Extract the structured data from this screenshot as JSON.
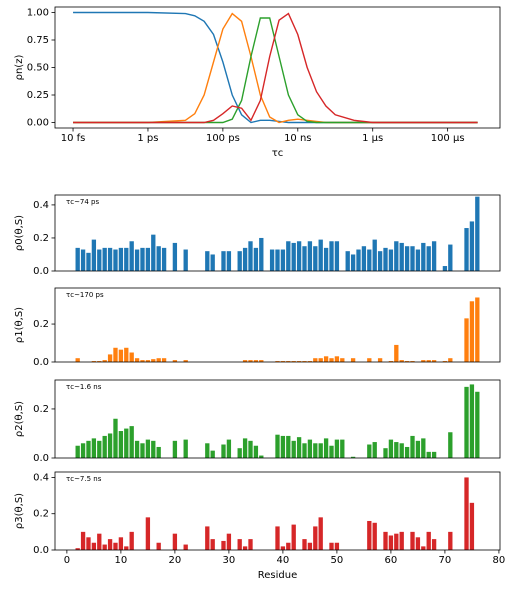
{
  "chart_data": [
    {
      "type": "line",
      "log_x": true,
      "xlabel": "τc",
      "ylabel": "ρn(z)",
      "x": [
        1e-14,
        1e-13,
        1e-12,
        1e-11,
        1.778e-11,
        3.162e-11,
        5.623e-11,
        1e-10,
        1.778e-10,
        3.162e-10,
        5.623e-10,
        1e-09,
        1.778e-09,
        3.162e-09,
        5.623e-09,
        1e-08,
        1.778e-08,
        3.162e-08,
        5.623e-08,
        1e-07,
        3.162e-07,
        1e-06,
        1e-05,
        0.0001,
        0.000631
      ],
      "series": [
        {
          "color": "#1f77b4",
          "values": [
            1,
            1,
            1,
            0.99,
            0.97,
            0.92,
            0.8,
            0.55,
            0.25,
            0.07,
            0,
            0.02,
            0.02,
            0.01,
            0,
            0,
            0,
            0,
            0,
            0,
            0,
            0,
            0,
            0,
            0
          ]
        },
        {
          "color": "#ff7f0e",
          "values": [
            0,
            0,
            0,
            0.02,
            0.08,
            0.25,
            0.55,
            0.85,
            0.99,
            0.92,
            0.6,
            0.25,
            0.05,
            0,
            0.02,
            0.03,
            0.02,
            0.01,
            0,
            0,
            0,
            0,
            0,
            0,
            0
          ]
        },
        {
          "color": "#2ca02c",
          "values": [
            0,
            0,
            0,
            0,
            0,
            0,
            0,
            0,
            0.03,
            0.2,
            0.6,
            0.95,
            0.95,
            0.6,
            0.25,
            0.07,
            0.01,
            0,
            0,
            0,
            0,
            0,
            0,
            0,
            0
          ]
        },
        {
          "color": "#d62728",
          "values": [
            0,
            0,
            0,
            0,
            0,
            0,
            0.02,
            0.08,
            0.15,
            0.13,
            0.02,
            0.2,
            0.6,
            0.93,
            0.99,
            0.8,
            0.5,
            0.28,
            0.15,
            0.07,
            0.02,
            0,
            0,
            0,
            0
          ]
        }
      ],
      "xlim": [
        3.3e-15,
        0.0025
      ],
      "xticks": [
        {
          "value": 1e-14,
          "label": "10 fs"
        },
        {
          "value": 1e-12,
          "label": "1 ps"
        },
        {
          "value": 1e-10,
          "label": "100 ps"
        },
        {
          "value": 1e-08,
          "label": "10 ns"
        },
        {
          "value": 1e-06,
          "label": "1 μs"
        },
        {
          "value": 0.0001,
          "label": "100 μs"
        }
      ],
      "ylim": [
        -0.05,
        1.05
      ],
      "yticks": [
        {
          "value": 0,
          "label": "0.00"
        },
        {
          "value": 0.25,
          "label": "0.25"
        },
        {
          "value": 0.5,
          "label": "0.50"
        },
        {
          "value": 0.75,
          "label": "0.75"
        },
        {
          "value": 1,
          "label": "1.00"
        }
      ]
    },
    {
      "type": "bar",
      "color": "#1f77b4",
      "ylabel": "ρ0(θ,S)",
      "annotation": "τc~74 ps",
      "x": [
        2,
        3,
        4,
        5,
        6,
        7,
        8,
        9,
        10,
        11,
        12,
        13,
        14,
        15,
        16,
        17,
        18,
        20,
        22,
        26,
        27,
        29,
        30,
        32,
        33,
        34,
        35,
        36,
        38,
        39,
        40,
        41,
        42,
        43,
        44,
        45,
        46,
        47,
        48,
        49,
        50,
        52,
        53,
        54,
        55,
        56,
        57,
        58,
        59,
        60,
        61,
        62,
        63,
        64,
        65,
        66,
        67,
        68,
        70,
        71,
        74,
        75,
        76
      ],
      "values": [
        0.14,
        0.13,
        0.11,
        0.19,
        0.13,
        0.14,
        0.14,
        0.13,
        0.14,
        0.14,
        0.18,
        0.13,
        0.14,
        0.14,
        0.22,
        0.15,
        0.14,
        0.17,
        0.13,
        0.12,
        0.1,
        0.12,
        0.12,
        0.12,
        0.14,
        0.18,
        0.14,
        0.2,
        0.13,
        0.13,
        0.13,
        0.18,
        0.17,
        0.18,
        0.15,
        0.18,
        0.15,
        0.19,
        0.14,
        0.18,
        0.18,
        0.12,
        0.1,
        0.13,
        0.15,
        0.13,
        0.19,
        0.12,
        0.14,
        0.13,
        0.18,
        0.17,
        0.15,
        0.15,
        0.13,
        0.17,
        0.15,
        0.18,
        0.03,
        0.16,
        0.26,
        0.3,
        0.45
      ],
      "xlim": [
        -2.2,
        80.2
      ],
      "ylim": [
        0,
        0.46
      ],
      "yticks": [
        {
          "value": 0,
          "label": "0.0"
        },
        {
          "value": 0.2,
          "label": "0.2"
        },
        {
          "value": 0.4,
          "label": "0.4"
        }
      ]
    },
    {
      "type": "bar",
      "color": "#ff7f0e",
      "ylabel": "ρ1(θ,S)",
      "annotation": "τc~170 ps",
      "x": [
        2,
        5,
        6,
        7,
        8,
        9,
        10,
        11,
        12,
        13,
        14,
        15,
        16,
        17,
        18,
        20,
        22,
        33,
        34,
        35,
        36,
        39,
        40,
        41,
        42,
        43,
        44,
        45,
        46,
        47,
        48,
        49,
        50,
        51,
        53,
        56,
        58,
        60,
        61,
        62,
        63,
        64,
        66,
        67,
        68,
        70,
        71,
        74,
        75,
        76
      ],
      "values": [
        0.02,
        0.005,
        0.005,
        0.01,
        0.04,
        0.075,
        0.065,
        0.075,
        0.05,
        0.02,
        0.01,
        0.01,
        0.015,
        0.02,
        0.02,
        0.01,
        0.01,
        0.01,
        0.01,
        0.01,
        0.01,
        0.005,
        0.005,
        0.005,
        0.005,
        0.005,
        0.005,
        0.005,
        0.02,
        0.02,
        0.03,
        0.02,
        0.03,
        0.02,
        0.02,
        0.02,
        0.02,
        0.005,
        0.09,
        0.01,
        0.005,
        0.005,
        0.01,
        0.01,
        0.01,
        0.005,
        0.02,
        0.23,
        0.32,
        0.34
      ],
      "xlim": [
        -2.2,
        80.2
      ],
      "ylim": [
        0,
        0.39
      ],
      "yticks": [
        {
          "value": 0,
          "label": "0.0"
        },
        {
          "value": 0.2,
          "label": "0.2"
        }
      ]
    },
    {
      "type": "bar",
      "color": "#2ca02c",
      "ylabel": "ρ2(θ,S)",
      "annotation": "τc~1.6 ns",
      "x": [
        2,
        3,
        4,
        5,
        6,
        7,
        8,
        9,
        10,
        11,
        12,
        13,
        14,
        15,
        16,
        17,
        20,
        22,
        26,
        27,
        29,
        30,
        32,
        33,
        34,
        35,
        36,
        39,
        40,
        41,
        42,
        43,
        44,
        45,
        46,
        47,
        48,
        49,
        50,
        51,
        53,
        56,
        57,
        59,
        60,
        61,
        62,
        63,
        64,
        65,
        66,
        67,
        68,
        71,
        74,
        75,
        76
      ],
      "values": [
        0.05,
        0.06,
        0.07,
        0.08,
        0.07,
        0.09,
        0.1,
        0.16,
        0.11,
        0.12,
        0.13,
        0.07,
        0.06,
        0.075,
        0.07,
        0.045,
        0.07,
        0.075,
        0.06,
        0.03,
        0.055,
        0.075,
        0.04,
        0.08,
        0.07,
        0.05,
        0.01,
        0.095,
        0.09,
        0.09,
        0.07,
        0.085,
        0.06,
        0.075,
        0.06,
        0.06,
        0.08,
        0.05,
        0.075,
        0.075,
        0.005,
        0.055,
        0.065,
        0.04,
        0.075,
        0.065,
        0.06,
        0.045,
        0.09,
        0.07,
        0.08,
        0.025,
        0.025,
        0.105,
        0.29,
        0.3,
        0.27
      ],
      "xlim": [
        -2.2,
        80.2
      ],
      "ylim": [
        0,
        0.318
      ],
      "yticks": [
        {
          "value": 0,
          "label": "0.0"
        },
        {
          "value": 0.2,
          "label": "0.2"
        }
      ]
    },
    {
      "type": "bar",
      "color": "#d62728",
      "ylabel": "ρ3(θ,S)",
      "annotation": "τc~7.5 ns",
      "xlabel": "Residue",
      "x": [
        2,
        3,
        4,
        5,
        6,
        7,
        8,
        9,
        10,
        11,
        12,
        15,
        17,
        20,
        22,
        26,
        27,
        29,
        30,
        32,
        33,
        34,
        39,
        40,
        41,
        42,
        44,
        45,
        46,
        47,
        49,
        50,
        56,
        57,
        59,
        60,
        61,
        62,
        64,
        65,
        66,
        67,
        68,
        71,
        74,
        75
      ],
      "values": [
        0.01,
        0.1,
        0.07,
        0.04,
        0.09,
        0.03,
        0.06,
        0.04,
        0.07,
        0.02,
        0.1,
        0.18,
        0.04,
        0.09,
        0.03,
        0.13,
        0.06,
        0.05,
        0.09,
        0.06,
        0.02,
        0.06,
        0.13,
        0.02,
        0.04,
        0.14,
        0.06,
        0.04,
        0.13,
        0.18,
        0.04,
        0.04,
        0.16,
        0.15,
        0.1,
        0.08,
        0.09,
        0.1,
        0.1,
        0.07,
        0.02,
        0.1,
        0.06,
        0.1,
        0.4,
        0.26
      ],
      "xlim": [
        -2.2,
        80.2
      ],
      "ylim": [
        0,
        0.43
      ],
      "xticks": [
        0,
        10,
        20,
        30,
        40,
        50,
        60,
        70,
        80
      ],
      "yticks": [
        {
          "value": 0,
          "label": "0.0"
        },
        {
          "value": 0.2,
          "label": "0.2"
        },
        {
          "value": 0.4,
          "label": "0.4"
        }
      ]
    }
  ]
}
